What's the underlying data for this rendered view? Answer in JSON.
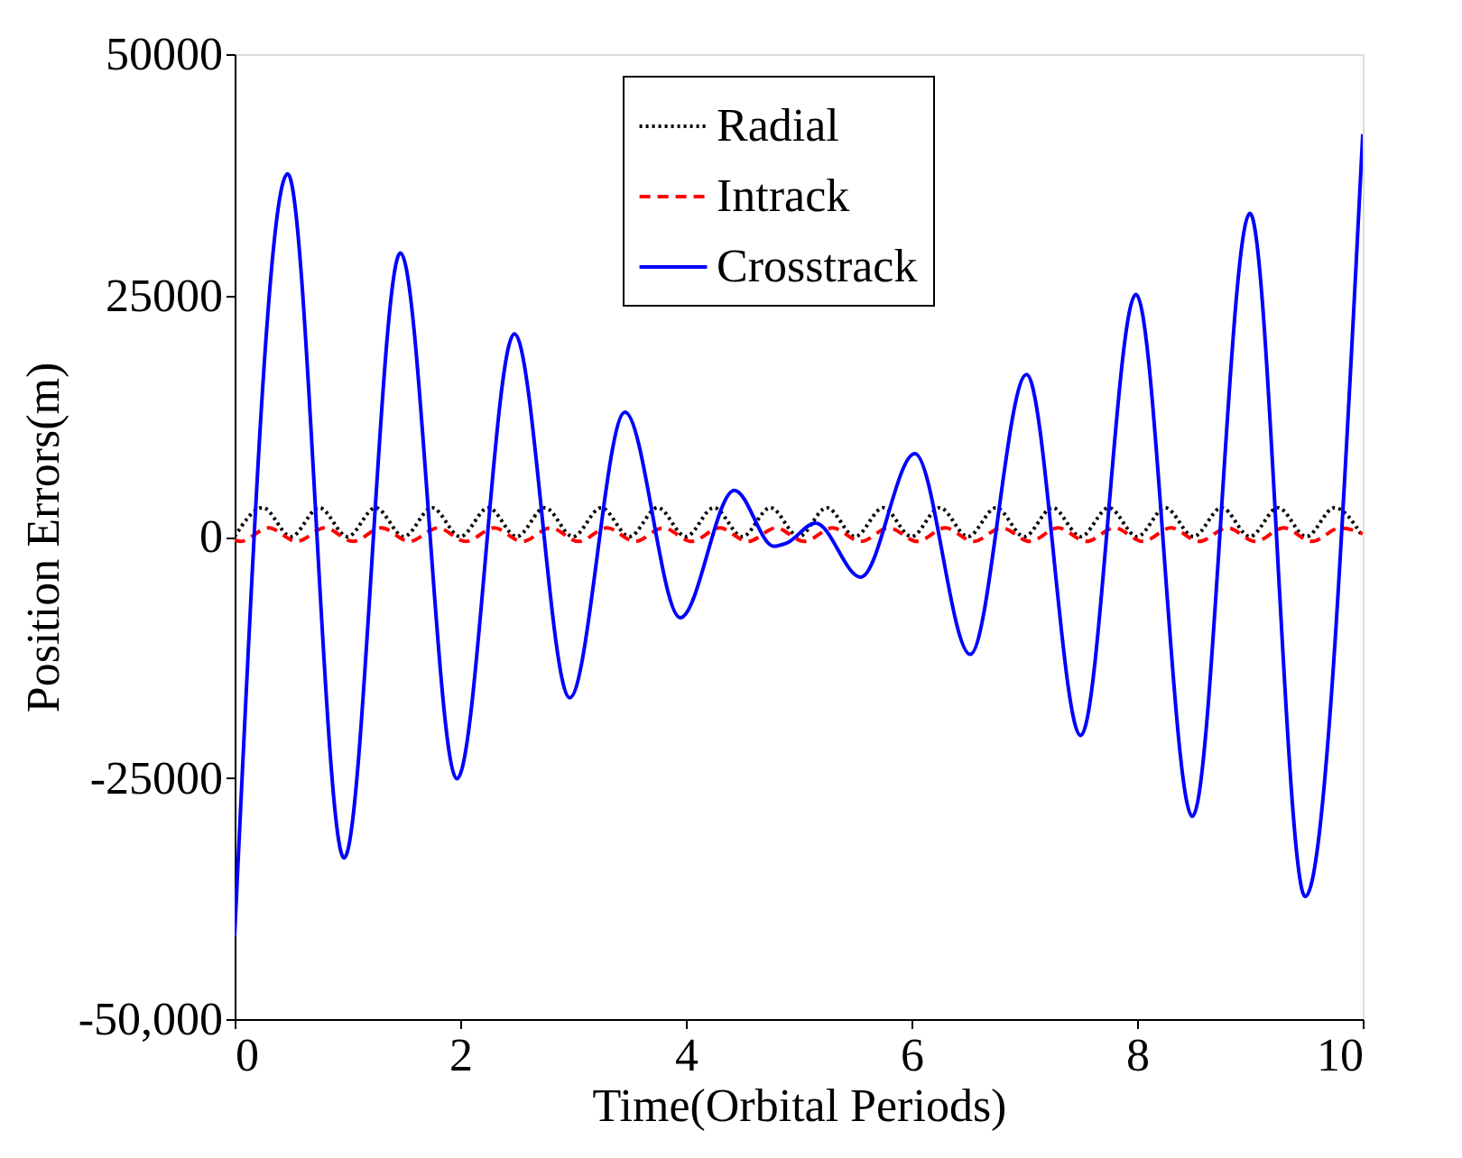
{
  "chart_data": {
    "type": "line",
    "xlabel": "Time(Orbital Periods)",
    "ylabel": "Position Errors(m)",
    "xlim": [
      0,
      10
    ],
    "xticks": [
      0,
      2,
      4,
      6,
      8,
      10
    ],
    "ylim": [
      -50000,
      50000
    ],
    "yticks": [
      {
        "value": -50000,
        "label": "-50,000"
      },
      -25000,
      0,
      25000,
      50000
    ],
    "grid": false,
    "legend": "top",
    "marker": "none",
    "series": [
      {
        "name": "Radial",
        "color": "#000000",
        "line_style": "dotted",
        "x": [
          0,
          0.25,
          0.5,
          0.75,
          1,
          1.25,
          1.5,
          1.75,
          2,
          2.25,
          2.5,
          2.75,
          3,
          3.25,
          3.5,
          3.75,
          4,
          4.25,
          4.5,
          4.75,
          5,
          5.25,
          5.5,
          5.75,
          6,
          6.25,
          6.5,
          6.75,
          7,
          7.25,
          7.5,
          7.75,
          8,
          8.25,
          8.5,
          8.75,
          9,
          9.25,
          9.5,
          9.75,
          10
        ],
        "values": [
          0,
          3000,
          0,
          3000,
          0,
          3000,
          0,
          3000,
          0,
          3000,
          0,
          3000,
          0,
          3000,
          0,
          3000,
          0,
          3000,
          0,
          3000,
          0,
          3000,
          0,
          3000,
          0,
          3000,
          0,
          3000,
          0,
          3000,
          0,
          3000,
          0,
          3000,
          0,
          3000,
          0,
          3000,
          0,
          3000,
          0
        ]
      },
      {
        "name": "Intrack",
        "color": "#ff0000",
        "line_style": "dashed",
        "x": [
          0,
          0.05,
          0.3,
          0.55,
          0.8,
          1.05,
          1.3,
          1.55,
          1.8,
          2.05,
          2.3,
          2.55,
          2.8,
          3.05,
          3.3,
          3.55,
          3.8,
          4.05,
          4.3,
          4.55,
          4.8,
          5.05,
          5.3,
          5.55,
          5.8,
          6.05,
          6.3,
          6.55,
          6.8,
          7.05,
          7.3,
          7.55,
          7.8,
          8.05,
          8.3,
          8.55,
          8.8,
          9.05,
          9.3,
          9.55,
          9.8,
          10
        ],
        "values": [
          -300,
          -500,
          900,
          -500,
          900,
          -500,
          900,
          -500,
          900,
          -500,
          900,
          -500,
          900,
          -500,
          900,
          -500,
          900,
          -500,
          900,
          -500,
          900,
          -500,
          900,
          -500,
          900,
          -500,
          900,
          -500,
          900,
          -500,
          900,
          -500,
          900,
          -500,
          900,
          -500,
          900,
          -500,
          900,
          -500,
          900,
          300
        ]
      },
      {
        "name": "Crosstrack",
        "color": "#0000ff",
        "line_style": "solid",
        "x": [
          0,
          0.47,
          0.97,
          1.47,
          1.97,
          2.48,
          2.97,
          3.46,
          3.95,
          4.43,
          4.78,
          4.89,
          5.15,
          5.55,
          6.03,
          6.52,
          7.02,
          7.5,
          7.99,
          8.49,
          9.0,
          9.49,
          10
        ],
        "values": [
          -41400,
          37600,
          -33300,
          29400,
          -25100,
          21000,
          -16700,
          12900,
          -8400,
          4800,
          -1000,
          -700,
          1400,
          -4200,
          8600,
          -12200,
          16800,
          -20600,
          25100,
          -29000,
          33500,
          -37300,
          41700
        ]
      }
    ]
  }
}
